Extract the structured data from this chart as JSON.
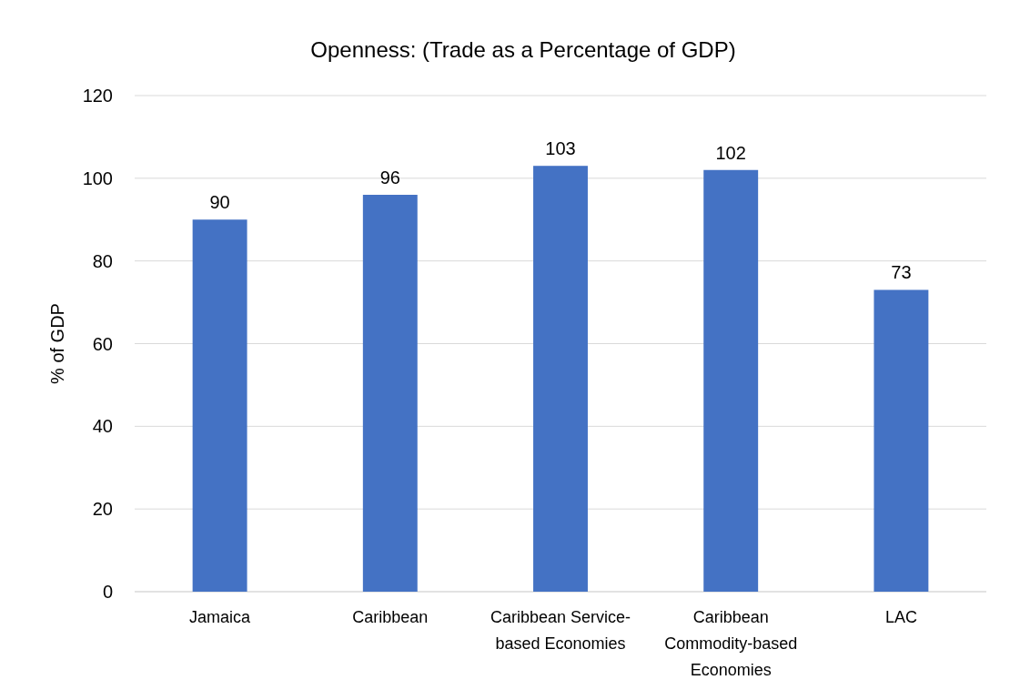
{
  "chart_data": {
    "type": "bar",
    "title": "Openness: (Trade as a Percentage of GDP)",
    "ylabel": "% of GDP",
    "categories": [
      "Jamaica",
      "Caribbean",
      "Caribbean Service-based Economies",
      "Caribbean Commodity-based Economies",
      "LAC"
    ],
    "values": [
      90,
      96,
      103,
      102,
      73
    ],
    "color": "#4472c4",
    "ylim": [
      0,
      120
    ],
    "yticks": [
      0,
      20,
      40,
      60,
      80,
      100,
      120
    ],
    "grid": "y",
    "data_labels": true
  }
}
